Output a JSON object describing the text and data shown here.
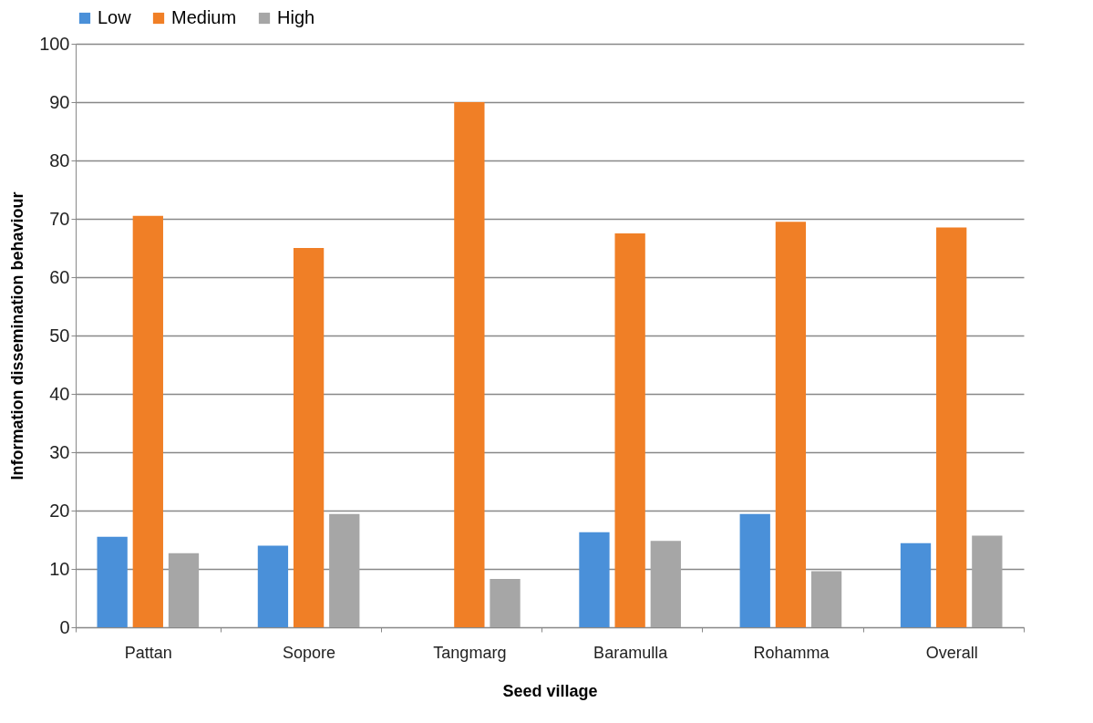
{
  "chart_data": {
    "type": "bar",
    "xlabel": "Seed village",
    "ylabel": "Information dissemination behaviour",
    "categories": [
      "Pattan",
      "Sopore",
      "Tangmarg",
      "Baramulla",
      "Rohamma",
      "Overall"
    ],
    "series": [
      {
        "name": "Low",
        "color": "#4a90d9",
        "values": [
          15.5,
          14,
          0,
          16.3,
          19.4,
          14.4
        ]
      },
      {
        "name": "Medium",
        "color": "#f07f26",
        "values": [
          70.5,
          65,
          90,
          67.5,
          69.5,
          68.5
        ]
      },
      {
        "name": "High",
        "color": "#a6a6a6",
        "values": [
          12.7,
          19.4,
          8.3,
          14.8,
          9.6,
          15.7
        ]
      }
    ],
    "ylim": [
      0,
      100
    ],
    "yticks": [
      0,
      10,
      20,
      30,
      40,
      50,
      60,
      70,
      80,
      90,
      100
    ],
    "grid": "y",
    "legend": "top"
  }
}
